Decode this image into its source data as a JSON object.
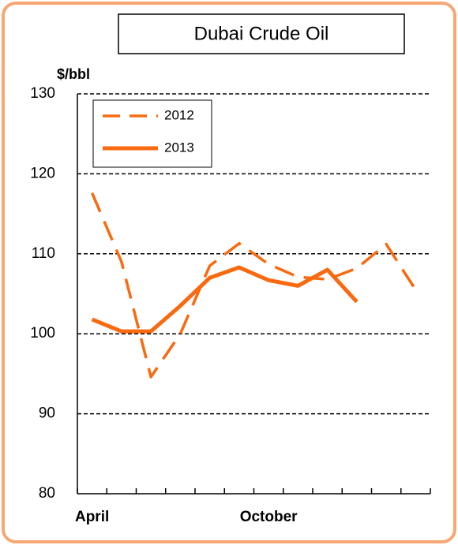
{
  "chart_data": {
    "type": "line",
    "title": "Dubai Crude Oil",
    "y_label": "$/bbl",
    "categories": [
      "April",
      null,
      null,
      null,
      null,
      null,
      "October",
      null,
      null,
      null,
      null,
      null
    ],
    "series": [
      {
        "name": "2012",
        "color": "#f96a10",
        "dash": true,
        "values": [
          117.6,
          109,
          94.6,
          100,
          108.5,
          111.3,
          108.7,
          107.1,
          106.8,
          108.2,
          111.2,
          105.5
        ]
      },
      {
        "name": "2013",
        "color": "#f96a10",
        "dash": false,
        "values": [
          101.8,
          100.3,
          100.3,
          103.5,
          107,
          108.3,
          106.7,
          106,
          108,
          104,
          null,
          null
        ]
      }
    ],
    "ylim": [
      80,
      130
    ],
    "yticks": [
      80,
      90,
      100,
      110,
      120,
      130
    ],
    "grid": true,
    "legend": "upper left"
  }
}
